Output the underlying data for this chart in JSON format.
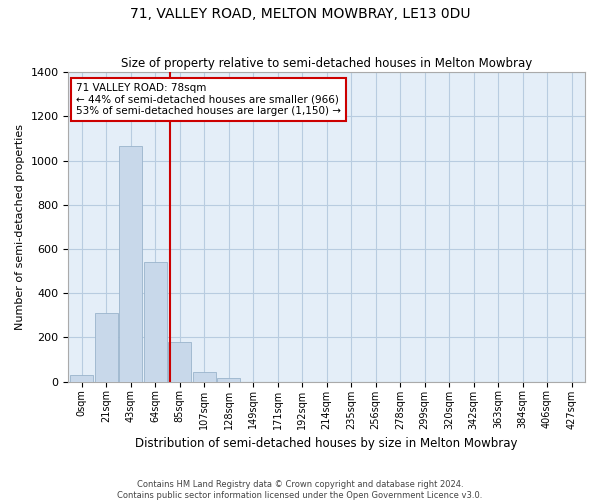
{
  "title": "71, VALLEY ROAD, MELTON MOWBRAY, LE13 0DU",
  "subtitle": "Size of property relative to semi-detached houses in Melton Mowbray",
  "xlabel": "Distribution of semi-detached houses by size in Melton Mowbray",
  "ylabel": "Number of semi-detached properties",
  "footer1": "Contains HM Land Registry data © Crown copyright and database right 2024.",
  "footer2": "Contains public sector information licensed under the Open Government Licence v3.0.",
  "bin_labels": [
    "0sqm",
    "21sqm",
    "43sqm",
    "64sqm",
    "85sqm",
    "107sqm",
    "128sqm",
    "149sqm",
    "171sqm",
    "192sqm",
    "214sqm",
    "235sqm",
    "256sqm",
    "278sqm",
    "299sqm",
    "320sqm",
    "342sqm",
    "363sqm",
    "384sqm",
    "406sqm",
    "427sqm"
  ],
  "bar_values": [
    30,
    310,
    1065,
    540,
    180,
    45,
    18,
    0,
    0,
    0,
    0,
    0,
    0,
    0,
    0,
    0,
    0,
    0,
    0,
    0,
    0
  ],
  "bar_color": "#c8d8ea",
  "bar_edge_color": "#9ab4cc",
  "grid_color": "#b8cce0",
  "background_color": "#e4eef8",
  "annotation_text1": "71 VALLEY ROAD: 78sqm",
  "annotation_text2": "← 44% of semi-detached houses are smaller (966)",
  "annotation_text3": "53% of semi-detached houses are larger (1,150) →",
  "vline_color": "#cc0000",
  "annotation_box_facecolor": "#ffffff",
  "annotation_box_edgecolor": "#cc0000",
  "ylim": [
    0,
    1400
  ],
  "yticks": [
    0,
    200,
    400,
    600,
    800,
    1000,
    1200,
    1400
  ],
  "vline_position": 3.62
}
